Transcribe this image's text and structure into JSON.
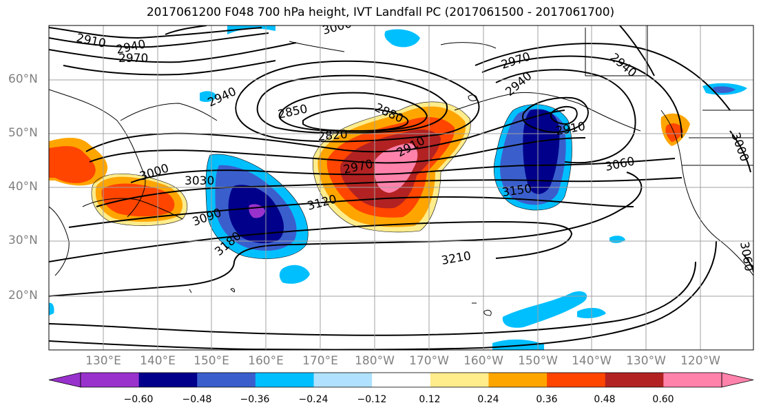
{
  "title": "2017061200 F048 700 hPa height, IVT Landfall PC (2017061500 - 2017061700)",
  "lat_labels": [
    "60°N",
    "50°N",
    "40°N",
    "30°N",
    "20°N"
  ],
  "lon_labels": [
    "130°E",
    "140°E",
    "150°E",
    "160°E",
    "170°E",
    "180°W",
    "170°W",
    "160°W",
    "150°W",
    "140°W",
    "130°W",
    "120°W"
  ],
  "contour_labels": [
    "2910",
    "2940",
    "2970",
    "3000",
    "2940",
    "2850",
    "2880",
    "2820",
    "2970",
    "2910",
    "3000",
    "3030",
    "3090",
    "3120",
    "3180",
    "3210",
    "2970",
    "2940",
    "2910",
    "3060",
    "3150",
    "2940",
    "3000",
    "3060"
  ],
  "colorbar": {
    "ticks": [
      "−0.60",
      "−0.48",
      "−0.36",
      "−0.24",
      "−0.12",
      "0.12",
      "0.24",
      "0.36",
      "0.48",
      "0.60"
    ],
    "colors": [
      "#9932CC",
      "#00008B",
      "#3A5FCD",
      "#00BFFF",
      "#B0E2FF",
      "#FFFFFF",
      "#FFEC8B",
      "#FFA500",
      "#FF4500",
      "#B22222",
      "#FF82AB",
      "#FF82AB"
    ]
  }
}
